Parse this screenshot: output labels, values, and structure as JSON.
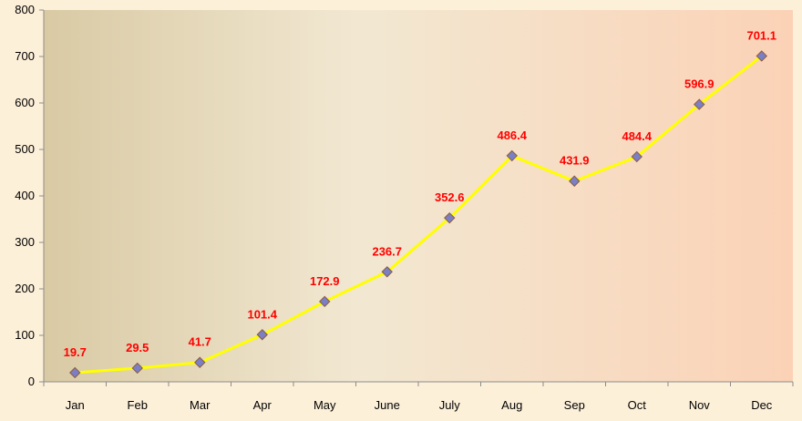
{
  "chart_data": {
    "type": "line",
    "categories": [
      "Jan",
      "Feb",
      "Mar",
      "Apr",
      "May",
      "June",
      "July",
      "Aug",
      "Sep",
      "Oct",
      "Nov",
      "Dec"
    ],
    "values": [
      19.7,
      29.5,
      41.7,
      101.4,
      172.9,
      236.7,
      352.6,
      486.4,
      431.9,
      484.4,
      596.9,
      701.1
    ],
    "data_labels": [
      "19.7",
      "29.5",
      "41.7",
      "101.4",
      "172.9",
      "236.7",
      "352.6",
      "486.4",
      "431.9",
      "484.4",
      "596.9",
      "701.1"
    ],
    "y_ticks": [
      "0",
      "100",
      "200",
      "300",
      "400",
      "500",
      "600",
      "700",
      "800"
    ],
    "title": "",
    "xlabel": "",
    "ylabel": "",
    "ylim": [
      0,
      800
    ],
    "grid": false,
    "legend": "none",
    "colors": {
      "line": "#ffff00",
      "marker_fill": "#7b7fc4",
      "marker_stroke": "#8a5a3c",
      "data_label": "#ff0000",
      "page_background": "#fdf0d9",
      "plot_gradient_start": "#d9caa4",
      "plot_gradient_mid": "#f2e8d2",
      "plot_gradient_end": "#fbd2b6"
    }
  }
}
